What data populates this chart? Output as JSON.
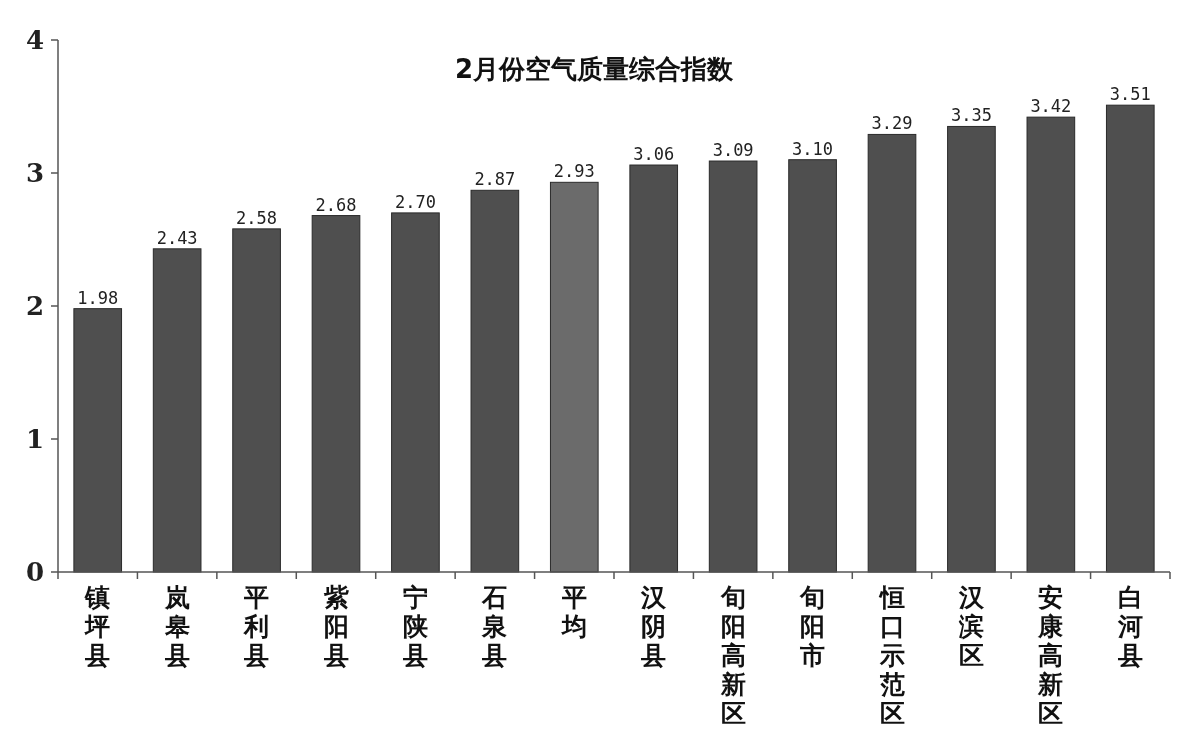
{
  "chart_data": {
    "type": "bar",
    "title": "2月份空气质量综合指数",
    "categories": [
      "镇坪县",
      "岚皋县",
      "平利县",
      "紫阳县",
      "宁陕县",
      "石泉县",
      "平均",
      "汉阴县",
      "旬阳高新区",
      "旬阳市",
      "恒口示范区",
      "汉滨区",
      "安康高新区",
      "白河县"
    ],
    "values": [
      1.98,
      2.43,
      2.58,
      2.68,
      2.7,
      2.87,
      2.93,
      3.06,
      3.09,
      3.1,
      3.29,
      3.35,
      3.42,
      3.51
    ],
    "value_labels": [
      "1.98",
      "2.43",
      "2.58",
      "2.68",
      "2.70",
      "2.87",
      "2.93",
      "3.06",
      "3.09",
      "3.10",
      "3.29",
      "3.35",
      "3.42",
      "3.51"
    ],
    "colors": [
      "#4f4f4f",
      "#4f4f4f",
      "#4f4f4f",
      "#4f4f4f",
      "#4f4f4f",
      "#4f4f4f",
      "#6b6b6b",
      "#4f4f4f",
      "#4f4f4f",
      "#4f4f4f",
      "#4f4f4f",
      "#4f4f4f",
      "#4f4f4f",
      "#4f4f4f"
    ],
    "ylim": [
      0,
      4
    ],
    "yticks": [
      0,
      1,
      2,
      3,
      4
    ],
    "grid": false
  }
}
